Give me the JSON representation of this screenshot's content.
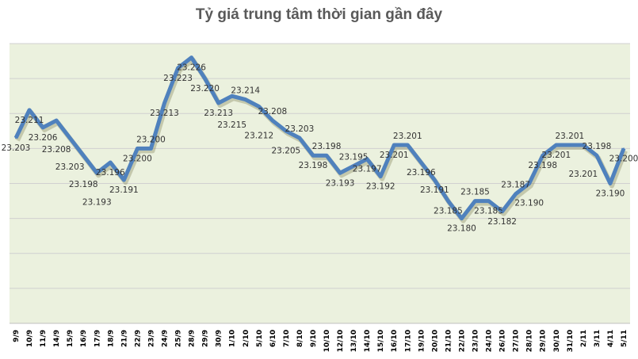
{
  "chart_data": {
    "type": "line",
    "title": "Tỷ giá trung tâm thời gian gần đây",
    "xlabel": "",
    "ylabel": "",
    "categories": [
      "9/9",
      "10/9",
      "11/9",
      "14/9",
      "15/9",
      "16/9",
      "17/9",
      "18/9",
      "21/9",
      "22/9",
      "23/9",
      "24/9",
      "25/9",
      "28/9",
      "29/9",
      "30/9",
      "1/10",
      "2/10",
      "5/10",
      "6/10",
      "7/10",
      "8/10",
      "9/10",
      "10/10",
      "12/10",
      "13/10",
      "14/10",
      "15/10",
      "16/10",
      "17/10",
      "19/10",
      "20/10",
      "21/10",
      "22/10",
      "23/10",
      "24/10",
      "26/10",
      "27/10",
      "28/10",
      "29/10",
      "30/10",
      "31/10",
      "2/11",
      "3/11",
      "4/11",
      "5/11"
    ],
    "values": [
      23.203,
      23.211,
      23.206,
      23.208,
      23.203,
      23.198,
      23.193,
      23.196,
      23.191,
      23.2,
      23.2,
      23.213,
      23.223,
      23.226,
      23.22,
      23.213,
      23.215,
      23.214,
      23.212,
      23.208,
      23.205,
      23.203,
      23.198,
      23.198,
      23.193,
      23.195,
      23.197,
      23.192,
      23.201,
      23.201,
      23.196,
      23.191,
      23.185,
      23.18,
      23.185,
      23.185,
      23.182,
      23.187,
      23.19,
      23.198,
      23.201,
      23.201,
      23.201,
      23.198,
      23.19,
      23.2
    ],
    "ylim": [
      23.15,
      23.23
    ],
    "y_gridline_step": 0.01,
    "y_tick_labels_shown": false,
    "grid": true,
    "legend": "none",
    "data_labels": true,
    "colors": {
      "line": "#4f81bd",
      "plot_background": "#ebf1de",
      "gridline": "#d0d0d0",
      "title": "#595959"
    }
  }
}
